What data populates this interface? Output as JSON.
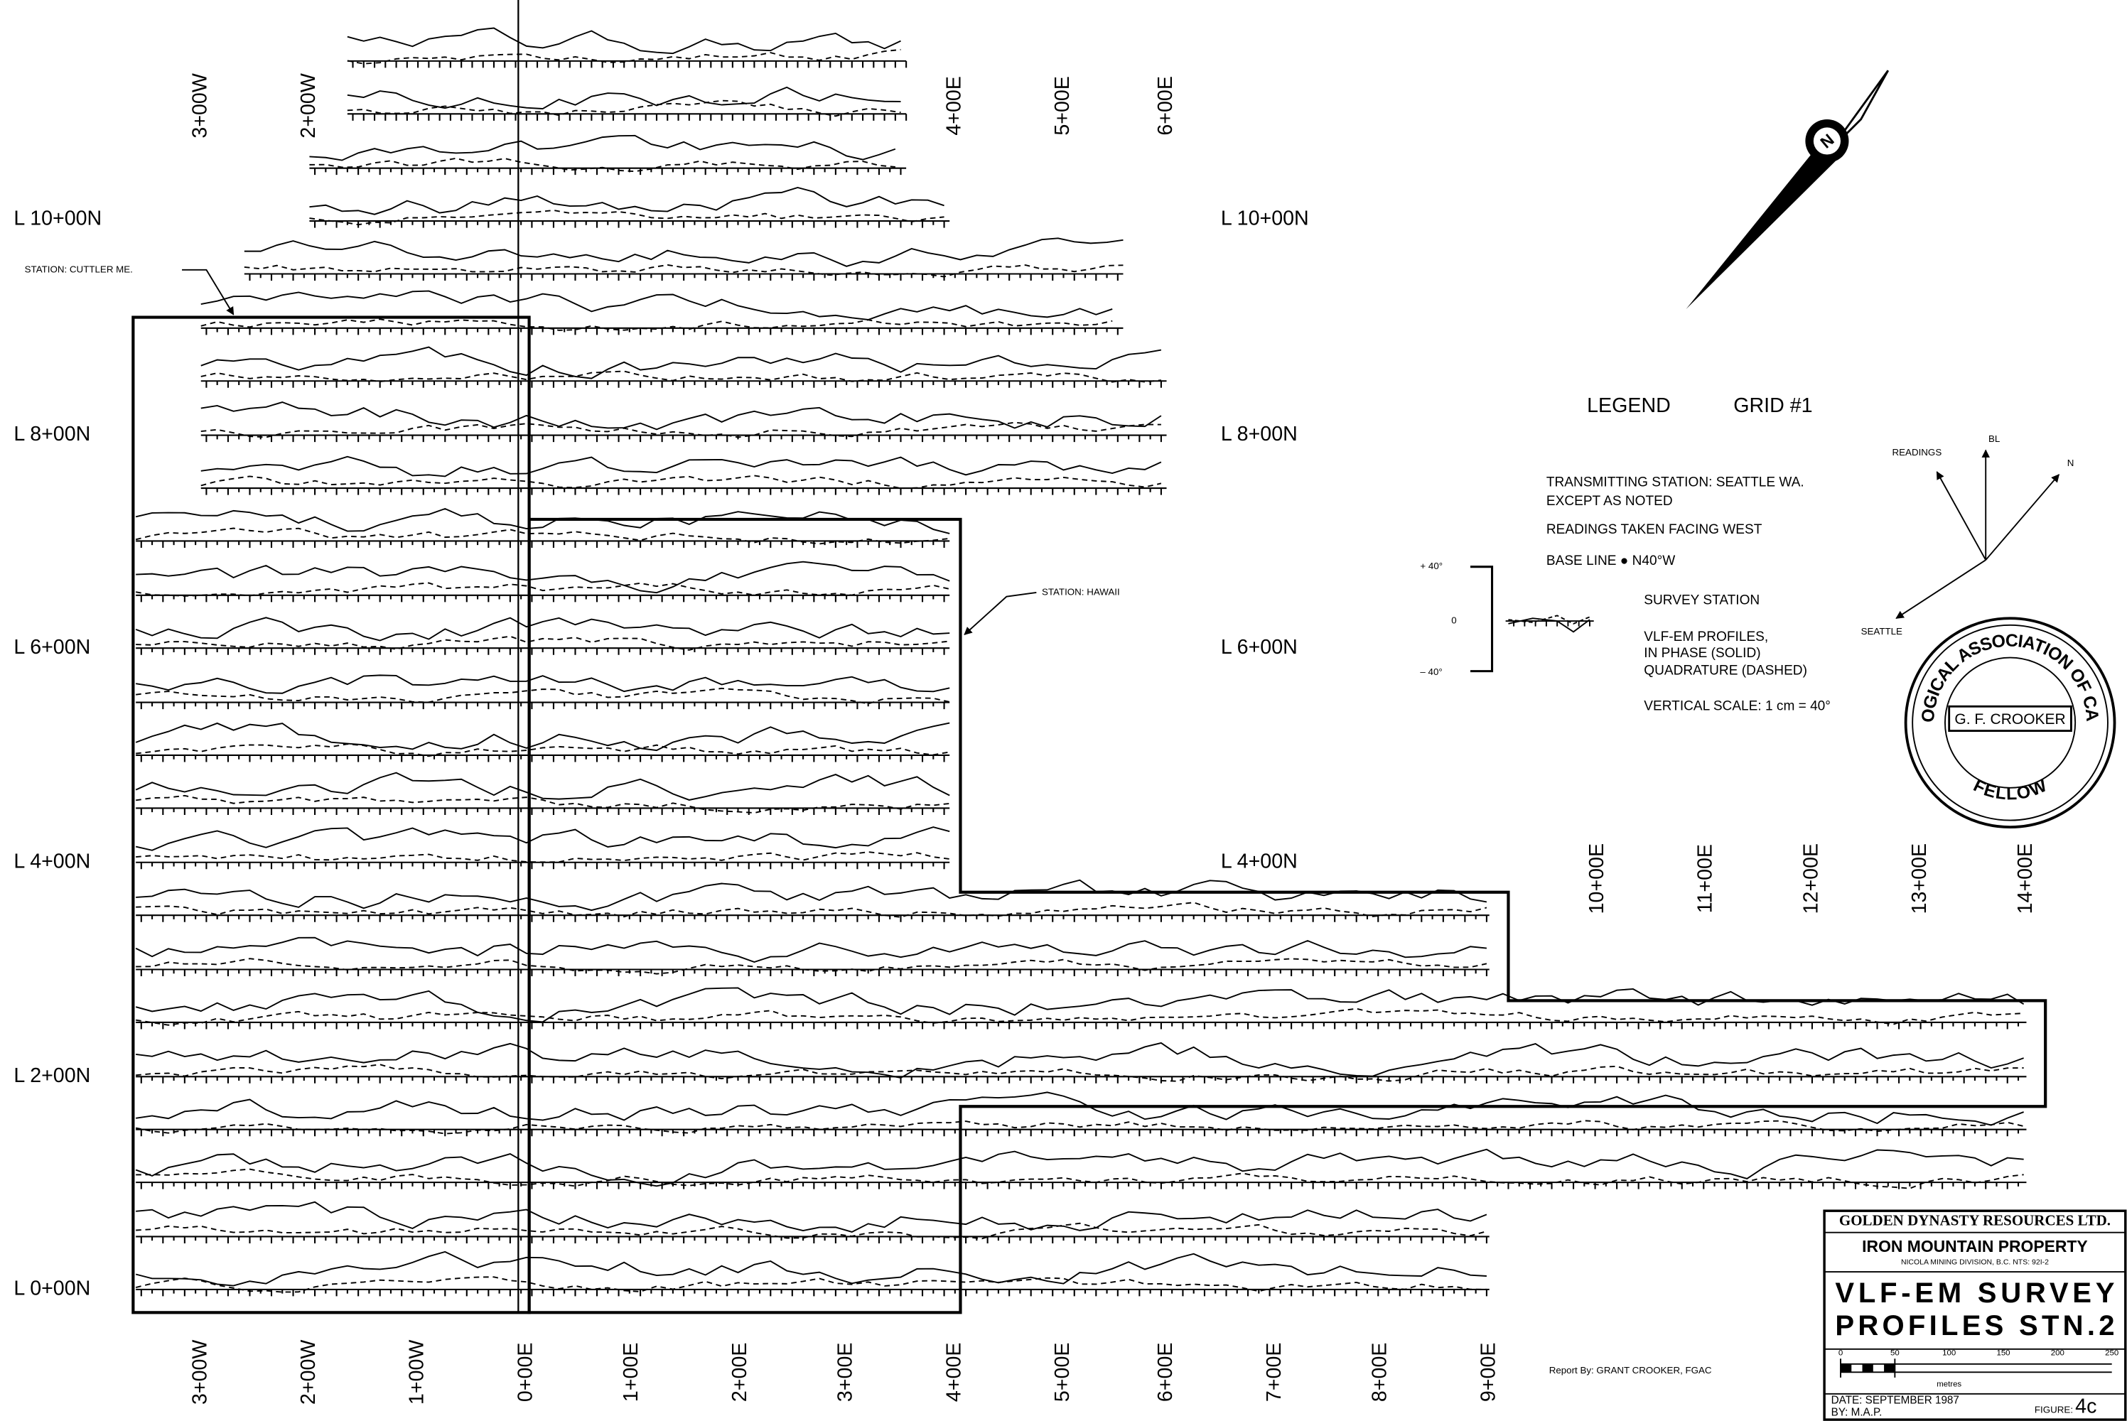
{
  "top_station_labels": [
    "3+00W",
    "2+00W",
    "4+00E",
    "5+00E",
    "6+00E"
  ],
  "line_labels_left": [
    "L 10+00N",
    "L 8+00N",
    "L 6+00N",
    "L 4+00N",
    "L 2+00N",
    "L 0+00N"
  ],
  "line_labels_right": [
    "L 10+00N",
    "L 8+00N",
    "L 6+00N",
    "L 4+00N"
  ],
  "bottom_station_labels": [
    "3+00W",
    "2+00W",
    "1+00W",
    "0+00E",
    "1+00E",
    "2+00E",
    "3+00E",
    "4+00E",
    "5+00E",
    "6+00E",
    "7+00E",
    "8+00E",
    "9+00E"
  ],
  "east_station_labels": [
    "10+00E",
    "11+00E",
    "12+00E",
    "13+00E",
    "14+00E"
  ],
  "station_notes": {
    "cuttler": "STATION: CUTTLER ME.",
    "hawaii": "STATION: HAWAII"
  },
  "legend": {
    "title": "LEGEND",
    "grid": "GRID #1",
    "transmitting": "TRANSMITTING STATION: SEATTLE WA.",
    "except": "EXCEPT AS NOTED",
    "facing": "READINGS TAKEN FACING WEST",
    "baseline": "BASE LINE ● N40°W",
    "plus": "+ 40°",
    "zero": "0",
    "minus": "– 40°",
    "survey_station": "SURVEY STATION",
    "profiles": "VLF-EM PROFILES,",
    "in_phase": "IN PHASE (SOLID)",
    "quadrature": "QUADRATURE (DASHED)",
    "vertical_scale": "VERTICAL SCALE: 1 cm = 40°"
  },
  "directions": {
    "readings": "READINGS",
    "bl": "BL",
    "n": "N",
    "seattle": "SEATTLE"
  },
  "north_arrow": "N",
  "seal": {
    "top": "GEOLOGICAL ASSOCIATION OF CANADA",
    "name": "G. F. CROOKER",
    "bottom": "FELLOW"
  },
  "report_by": "Report By: GRANT CROOKER, FGAC",
  "title_block": {
    "company": "GOLDEN DYNASTY RESOURCES LTD.",
    "property": "IRON MOUNTAIN PROPERTY",
    "division": "NICOLA MINING DIVISION, B.C.   NTS: 92I-2",
    "title1": "VLF-EM SURVEY",
    "title2": "PROFILES STN.2",
    "scale_labels": [
      "0",
      "50",
      "100",
      "150",
      "200",
      "250"
    ],
    "scale_unit": "metres",
    "date": "DATE: SEPTEMBER 1987",
    "by": "BY: M.A.P.",
    "figure_label": "FIGURE:",
    "figure": "4c"
  }
}
